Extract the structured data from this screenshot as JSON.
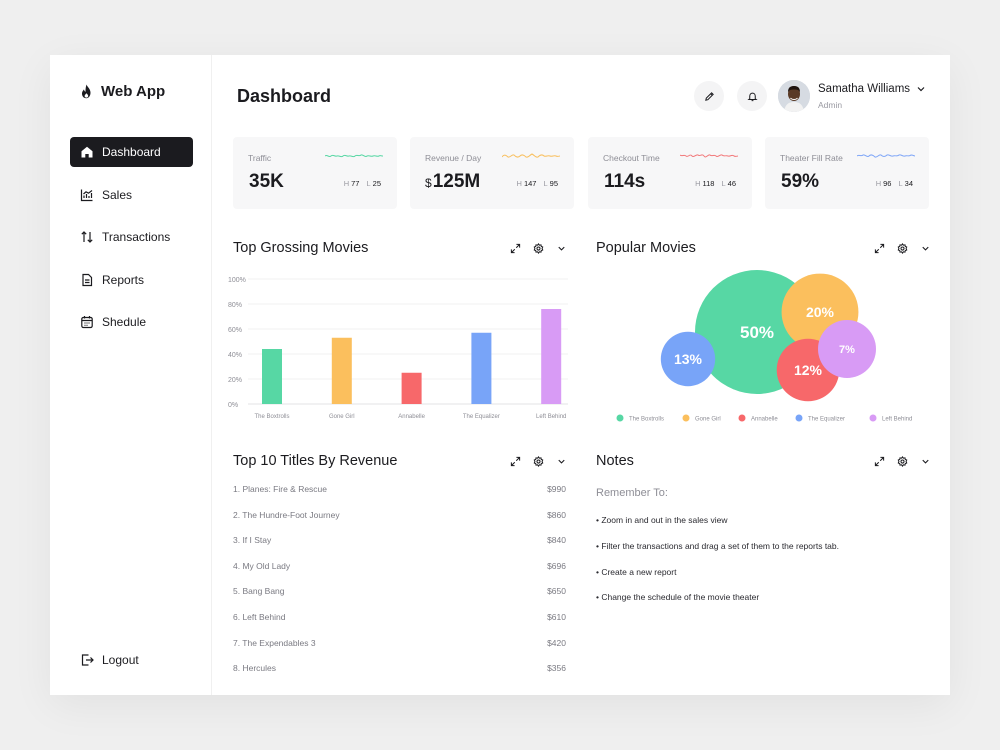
{
  "app": {
    "name": "Web App"
  },
  "sidebar": {
    "items": [
      {
        "label": "Dashboard",
        "icon": "home-icon",
        "active": true
      },
      {
        "label": "Sales",
        "icon": "chart-icon",
        "active": false
      },
      {
        "label": "Transactions",
        "icon": "arrows-updown-icon",
        "active": false
      },
      {
        "label": "Reports",
        "icon": "document-icon",
        "active": false
      },
      {
        "label": "Shedule",
        "icon": "calendar-icon",
        "active": false
      }
    ],
    "logout_label": "Logout"
  },
  "header": {
    "title": "Dashboard",
    "user": {
      "name": "Samatha Williams",
      "role": "Admin"
    }
  },
  "stats": [
    {
      "label": "Traffic",
      "value": "35K",
      "currency": "",
      "high_key": "H",
      "high": "77",
      "low_key": "L",
      "low": "25",
      "color": "#57d7a4"
    },
    {
      "label": "Revenue / Day",
      "value": "125M",
      "currency": "$",
      "high_key": "H",
      "high": "147",
      "low_key": "L",
      "low": "95",
      "color": "#f8c060"
    },
    {
      "label": "Checkout Time",
      "value": "114s",
      "currency": "",
      "high_key": "H",
      "high": "118",
      "low_key": "L",
      "low": "46",
      "color": "#f2787a"
    },
    {
      "label": "Theater Fill Rate",
      "value": "59%",
      "currency": "",
      "high_key": "H",
      "high": "96",
      "low_key": "L",
      "low": "34",
      "color": "#7fa6f7"
    }
  ],
  "sections": {
    "top_grossing": "Top Grossing Movies",
    "popular": "Popular Movies",
    "top10": "Top 10 Titles By Revenue",
    "notes": "Notes"
  },
  "chart_data": [
    {
      "type": "bar",
      "categories": [
        "The Boxtrolls",
        "Gone Girl",
        "Annabelle",
        "The Equalizer",
        "Left Behind"
      ],
      "values": [
        44,
        53,
        25,
        57,
        76
      ],
      "colors": [
        "#57d7a4",
        "#fbbf5d",
        "#f7686a",
        "#78a4f8",
        "#d89bf5"
      ],
      "yticks": [
        "0%",
        "20%",
        "40%",
        "60%",
        "80%",
        "100%"
      ],
      "ylim": [
        0,
        100
      ],
      "grid": true
    },
    {
      "type": "bubble",
      "categories": [
        "The Boxtrolls",
        "Gone Girl",
        "Annabelle",
        "The Equalizer",
        "Left Behind"
      ],
      "values": [
        50,
        20,
        12,
        13,
        7
      ],
      "labels": [
        "50%",
        "20%",
        "12%",
        "13%",
        "7%"
      ],
      "colors": [
        "#57d7a4",
        "#fbbf5d",
        "#f7686a",
        "#78a4f8",
        "#d89bf5"
      ],
      "legend": "bottom"
    }
  ],
  "top10": [
    {
      "title": "1. Planes: Fire & Rescue",
      "amount": "$990"
    },
    {
      "title": "2. The Hundre-Foot Journey",
      "amount": "$860"
    },
    {
      "title": "3. If I Stay",
      "amount": "$840"
    },
    {
      "title": "4. My Old Lady",
      "amount": "$696"
    },
    {
      "title": "5. Bang Bang",
      "amount": "$650"
    },
    {
      "title": "6. Left Behind",
      "amount": "$610"
    },
    {
      "title": "7. The Expendables 3",
      "amount": "$420"
    },
    {
      "title": "8. Hercules",
      "amount": "$356"
    }
  ],
  "notes": {
    "subtitle": "Remember To:",
    "items": [
      "• Zoom in and out in the sales view",
      "• Filter the transactions and drag a set of them to the reports tab.",
      "• Create a new report",
      "• Change the schedule of the movie theater"
    ]
  }
}
